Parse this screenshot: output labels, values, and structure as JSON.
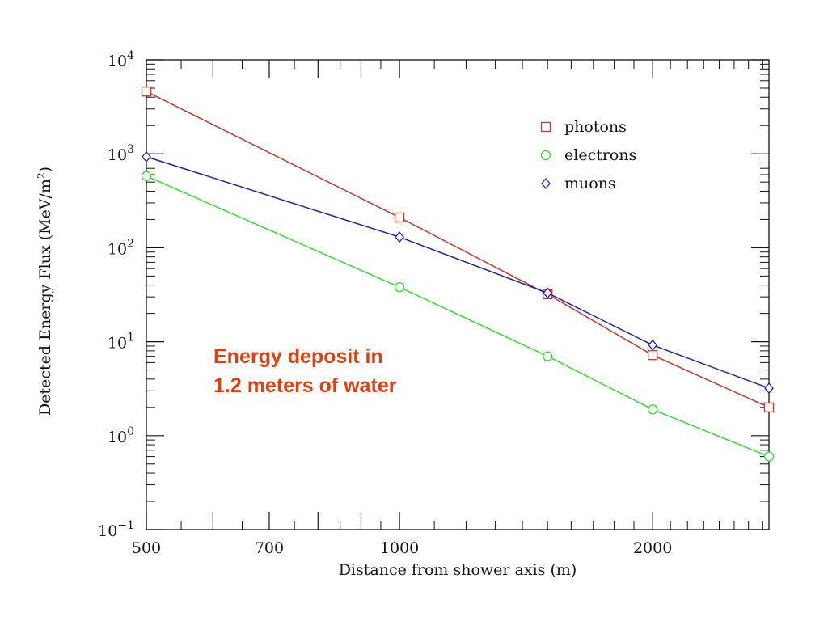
{
  "chart_data": {
    "type": "line",
    "xlabel": "Distance from shower axis (m)",
    "ylabel_main": "Detected Energy Flux (MeV/m",
    "ylabel_sup": "2",
    "ylabel_close": ")",
    "xscale": "log",
    "yscale": "log",
    "xlim": [
      500,
      2750
    ],
    "ylim": [
      0.1,
      10000
    ],
    "x_ticks": [
      {
        "value": 500,
        "label": "500"
      },
      {
        "value": 700,
        "label": "700"
      },
      {
        "value": 1000,
        "label": "1000"
      },
      {
        "value": 2000,
        "label": "2000"
      }
    ],
    "y_ticks": [
      {
        "value": 0.1,
        "base": "10",
        "exp": "−1"
      },
      {
        "value": 1,
        "base": "10",
        "exp": "0"
      },
      {
        "value": 10,
        "base": "10",
        "exp": "1"
      },
      {
        "value": 100,
        "base": "10",
        "exp": "2"
      },
      {
        "value": 1000,
        "base": "10",
        "exp": "3"
      },
      {
        "value": 10000,
        "base": "10",
        "exp": "4"
      }
    ],
    "x": [
      500,
      1000,
      1500,
      2000,
      2750
    ],
    "series": [
      {
        "name": "photons",
        "marker": "square",
        "color": "#c8362c",
        "values": [
          4600,
          210,
          32,
          7.2,
          2.0
        ]
      },
      {
        "name": "electrons",
        "marker": "circle",
        "color": "#33dd33",
        "values": [
          580,
          38,
          7.0,
          1.9,
          0.6
        ]
      },
      {
        "name": "muons",
        "marker": "diamond",
        "color": "#2020aa",
        "values": [
          930,
          130,
          33,
          9.2,
          3.2
        ]
      }
    ],
    "legend_position": "top-right",
    "annotation": [
      "Energy deposit in",
      "1.2 meters of water"
    ],
    "annotation_color": "#e0400f",
    "grid": false
  }
}
